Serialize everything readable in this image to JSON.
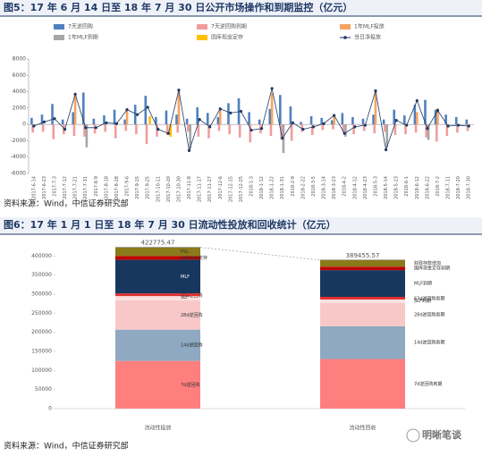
{
  "chart_data": [
    {
      "type": "bar",
      "title": "图5：17 年 6 月 14 日至 18 年 7 月 30 日公开市场操作和到期监控（亿元）",
      "source": "资料来源：Wind，中信证券研究部",
      "categories": [
        "2017-6-14",
        "2017-6-23",
        "2017-7-3",
        "2017-7-12",
        "2017-7-21",
        "2017-7-31",
        "2017-8-9",
        "2017-8-18",
        "2017-8-28",
        "2017-9-6",
        "2017-9-15",
        "2017-9-25",
        "2017-10-11",
        "2017-10-20",
        "2017-10-30",
        "2017-11-8",
        "2017-11-17",
        "2017-11-27",
        "2017-12-6",
        "2017-12-15",
        "2017-12-25",
        "2018-1-3",
        "2018-1-12",
        "2018-1-22",
        "2018-1-31",
        "2018-2-9",
        "2018-2-22",
        "2018-3-5",
        "2018-3-14",
        "2018-3-23",
        "2018-4-2",
        "2018-4-12",
        "2018-4-23",
        "2018-5-3",
        "2018-5-14",
        "2018-5-23",
        "2018-6-1",
        "2018-6-12",
        "2018-6-22",
        "2018-7-2",
        "2018-7-11",
        "2018-7-20",
        "2018-7-30"
      ],
      "series": [
        {
          "name": "7天逆回购",
          "color": "#4f81bd",
          "values": [
            800,
            1200,
            2500,
            600,
            1500,
            3900,
            700,
            1100,
            1800,
            600,
            2400,
            3500,
            900,
            1700,
            1200,
            700,
            2100,
            1400,
            900,
            2600,
            3200,
            1500,
            600,
            1900,
            3600,
            2200,
            300,
            1000,
            800,
            500,
            1400,
            900,
            700,
            1200,
            600,
            1800,
            1100,
            2400,
            3000,
            1800,
            1200,
            900,
            600
          ]
        },
        {
          "name": "7天逆回购到期",
          "color": "#f19c9c",
          "values": [
            -1000,
            -900,
            -1800,
            -1200,
            -1400,
            -1500,
            -1100,
            -900,
            -1700,
            -800,
            -1200,
            -2400,
            -1500,
            -1300,
            -1000,
            -900,
            -1500,
            -1700,
            -800,
            -1200,
            -1600,
            -2200,
            -1100,
            -1400,
            -1800,
            -2000,
            -900,
            -1300,
            -700,
            -600,
            -1000,
            -1200,
            -800,
            -1100,
            -900,
            -1300,
            -1200,
            -1000,
            -1600,
            -2100,
            -1400,
            -1000,
            -800
          ]
        },
        {
          "name": "1年MLF投放",
          "color": "#f4a460",
          "values": [
            0,
            0,
            0,
            0,
            3600,
            0,
            0,
            0,
            0,
            2000,
            0,
            0,
            0,
            0,
            4000,
            0,
            0,
            0,
            1800,
            0,
            0,
            0,
            0,
            3900,
            0,
            0,
            0,
            0,
            0,
            1200,
            0,
            0,
            0,
            4000,
            0,
            0,
            0,
            1500,
            0,
            2000,
            0,
            0,
            0
          ]
        },
        {
          "name": "1年MLF到期",
          "color": "#a6a6a6",
          "values": [
            0,
            0,
            0,
            0,
            0,
            -2800,
            0,
            0,
            0,
            0,
            0,
            0,
            0,
            0,
            0,
            -3000,
            0,
            0,
            0,
            0,
            0,
            0,
            0,
            0,
            -3500,
            0,
            0,
            0,
            0,
            0,
            -1500,
            0,
            0,
            0,
            -2800,
            0,
            0,
            0,
            -1900,
            0,
            0,
            0,
            0
          ]
        },
        {
          "name": "国库现金定存",
          "color": "#ffc000",
          "values": [
            0,
            0,
            0,
            0,
            0,
            0,
            0,
            0,
            0,
            0,
            0,
            1000,
            0,
            -1500,
            0,
            0,
            0,
            0,
            0,
            0,
            0,
            0,
            0,
            0,
            0,
            0,
            0,
            0,
            0,
            0,
            0,
            0,
            0,
            0,
            0,
            0,
            0,
            0,
            0,
            0,
            0,
            0,
            0
          ]
        },
        {
          "name": "当日净投放",
          "color": "#1f3864",
          "style": "line",
          "values": [
            -200,
            300,
            700,
            -600,
            3700,
            -400,
            -400,
            200,
            100,
            1800,
            1200,
            2100,
            -600,
            -1100,
            4200,
            -3200,
            600,
            -300,
            1900,
            1400,
            1600,
            -700,
            -500,
            4400,
            -1700,
            200,
            -600,
            -300,
            100,
            1100,
            -1100,
            -300,
            -100,
            4100,
            -3100,
            500,
            -100,
            2900,
            -500,
            1700,
            -200,
            -100,
            -200
          ]
        }
      ],
      "ylim": [
        -6000,
        8000
      ],
      "yticks": [
        -6000,
        -4000,
        -2000,
        0,
        2000,
        4000,
        6000,
        8000
      ],
      "grid": false
    },
    {
      "type": "stacked_bar",
      "title": "图6：17 年 1 月 1 日至 18 年 7 月 30 日流动性投放和回收统计（亿元）",
      "source": "资料来源：Wind，中信证券研究部",
      "categories": [
        "流动性投放",
        "流动性回收"
      ],
      "series": [
        {
          "labels": [
            "7d逆回购",
            "7d逆回购到期"
          ],
          "color": "#ff7f7f",
          "values": [
            125000,
            130000
          ]
        },
        {
          "labels": [
            "14d逆回购",
            "14d逆回购到期"
          ],
          "color": "#8ea9c1",
          "values": [
            82000,
            86000
          ]
        },
        {
          "labels": [
            "28d逆回购",
            "28d逆回购到期"
          ],
          "color": "#f8c8c8",
          "values": [
            77000,
            61000
          ]
        },
        {
          "labels": [
            "63d逆回购",
            "63d逆回购到期"
          ],
          "color": "#fde0e0",
          "values": [
            11000,
            9000
          ]
        },
        {
          "labels": [
            "SLF",
            "SLF到期"
          ],
          "color": "#e03030",
          "values": [
            7000,
            7000
          ]
        },
        {
          "labels": [
            "MLF",
            "MLF到期"
          ],
          "color": "#17375e",
          "values": [
            88000,
            70000
          ]
        },
        {
          "labels": [
            "国库现金定存",
            "国库现金定存到期"
          ],
          "color": "#c00000",
          "values": [
            10000,
            9000
          ]
        },
        {
          "labels": [
            "PSL",
            "财政存款增加"
          ],
          "color": "#8a7a1a",
          "values": [
            22775.47,
            17455.57
          ]
        }
      ],
      "totals": [
        422775.47,
        389455.57
      ],
      "ylim": [
        0,
        450000
      ],
      "yticks": [
        0,
        50000,
        100000,
        150000,
        200000,
        250000,
        300000,
        350000,
        400000
      ]
    }
  ],
  "watermark": "明晰笔谈"
}
